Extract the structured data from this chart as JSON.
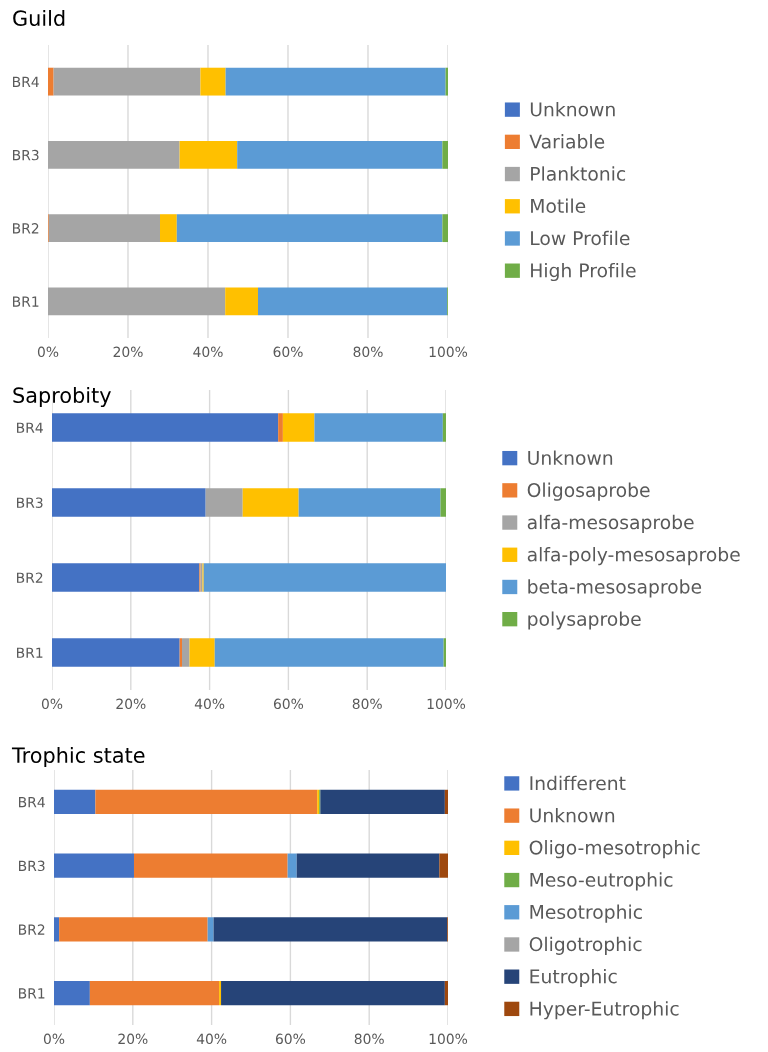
{
  "chart_data": [
    {
      "type": "bar",
      "title": "Guild",
      "orientation": "horizontal",
      "stacked": true,
      "categories": [
        "BR4",
        "BR3",
        "BR2",
        "BR1"
      ],
      "xlim": [
        0,
        100
      ],
      "xticks": [
        {
          "value": 0,
          "label": "0%"
        },
        {
          "value": 20,
          "label": "20%"
        },
        {
          "value": 40,
          "label": "40%"
        },
        {
          "value": 60,
          "label": "60%"
        },
        {
          "value": 80,
          "label": "80%"
        },
        {
          "value": 100,
          "label": "100%"
        }
      ],
      "grid": "x",
      "legend": "right",
      "series": [
        {
          "name": "Unknown",
          "color": "#4472c4",
          "values": [
            0,
            0,
            0,
            0
          ]
        },
        {
          "name": "Variable",
          "color": "#ed7d31",
          "values": [
            1.4,
            0,
            0.2,
            0
          ]
        },
        {
          "name": "Planktonic",
          "color": "#a5a5a5",
          "values": [
            36.7,
            32.9,
            27.8,
            44.3
          ]
        },
        {
          "name": "Motile",
          "color": "#ffc000",
          "values": [
            6.3,
            14.4,
            4.2,
            8.2
          ]
        },
        {
          "name": "Low Profile",
          "color": "#5b9bd5",
          "values": [
            55.0,
            51.3,
            66.4,
            47.3
          ]
        },
        {
          "name": "High Profile",
          "color": "#70ad47",
          "values": [
            0.6,
            1.4,
            1.4,
            0.2
          ]
        }
      ]
    },
    {
      "type": "bar",
      "title": "Saprobity",
      "orientation": "horizontal",
      "stacked": true,
      "categories": [
        "BR4",
        "BR3",
        "BR2",
        "BR1"
      ],
      "xlim": [
        0,
        100
      ],
      "xticks": [
        {
          "value": 0,
          "label": "0%"
        },
        {
          "value": 20,
          "label": "20%"
        },
        {
          "value": 40,
          "label": "40%"
        },
        {
          "value": 60,
          "label": "60%"
        },
        {
          "value": 80,
          "label": "80%"
        },
        {
          "value": 100,
          "label": "100%"
        }
      ],
      "grid": "x",
      "legend": "right",
      "series": [
        {
          "name": "Unknown",
          "color": "#4472c4",
          "values": [
            57.4,
            39.0,
            37.4,
            32.4
          ]
        },
        {
          "name": "Oligosaprobe",
          "color": "#ed7d31",
          "values": [
            1.2,
            0,
            0.3,
            0.6
          ]
        },
        {
          "name": "alfa-mesosaprobe",
          "color": "#a5a5a5",
          "values": [
            0,
            9.4,
            0.5,
            1.9
          ]
        },
        {
          "name": "alfa-poly-mesosaprobe",
          "color": "#ffc000",
          "values": [
            8.0,
            14.2,
            0.3,
            6.4
          ]
        },
        {
          "name": "beta-mesosaprobe",
          "color": "#5b9bd5",
          "values": [
            32.6,
            36.0,
            61.5,
            58.1
          ]
        },
        {
          "name": "polysaprobe",
          "color": "#70ad47",
          "values": [
            0.8,
            1.4,
            0,
            0.6
          ]
        }
      ]
    },
    {
      "type": "bar",
      "title": "Trophic state",
      "orientation": "horizontal",
      "stacked": true,
      "categories": [
        "BR4",
        "BR3",
        "BR2",
        "BR1"
      ],
      "xlim": [
        0,
        100
      ],
      "xticks": [
        {
          "value": 0,
          "label": "0%"
        },
        {
          "value": 20,
          "label": "20%"
        },
        {
          "value": 40,
          "label": "40%"
        },
        {
          "value": 60,
          "label": "60%"
        },
        {
          "value": 80,
          "label": "80%"
        },
        {
          "value": 100,
          "label": "100%"
        }
      ],
      "grid": "x",
      "legend": "right",
      "series": [
        {
          "name": "Indifferent",
          "color": "#4472c4",
          "values": [
            10.5,
            20.3,
            1.3,
            9.1
          ]
        },
        {
          "name": "Unknown",
          "color": "#ed7d31",
          "values": [
            56.3,
            39.0,
            37.7,
            32.8
          ]
        },
        {
          "name": "Oligo-mesotrophic",
          "color": "#ffc000",
          "values": [
            0.5,
            0,
            0,
            0.5
          ]
        },
        {
          "name": "Meso-eutrophic",
          "color": "#70ad47",
          "values": [
            0.3,
            0,
            0,
            0
          ]
        },
        {
          "name": "Mesotrophic",
          "color": "#5b9bd5",
          "values": [
            0,
            2.3,
            1.5,
            0
          ]
        },
        {
          "name": "Oligotrophic",
          "color": "#a5a5a5",
          "values": [
            0,
            0,
            0,
            0
          ]
        },
        {
          "name": "Eutrophic",
          "color": "#264478",
          "values": [
            31.6,
            36.2,
            59.3,
            56.8
          ]
        },
        {
          "name": "Hyper-Eutrophic",
          "color": "#9e480e",
          "values": [
            0.8,
            2.2,
            0.2,
            0.8
          ]
        }
      ]
    }
  ]
}
